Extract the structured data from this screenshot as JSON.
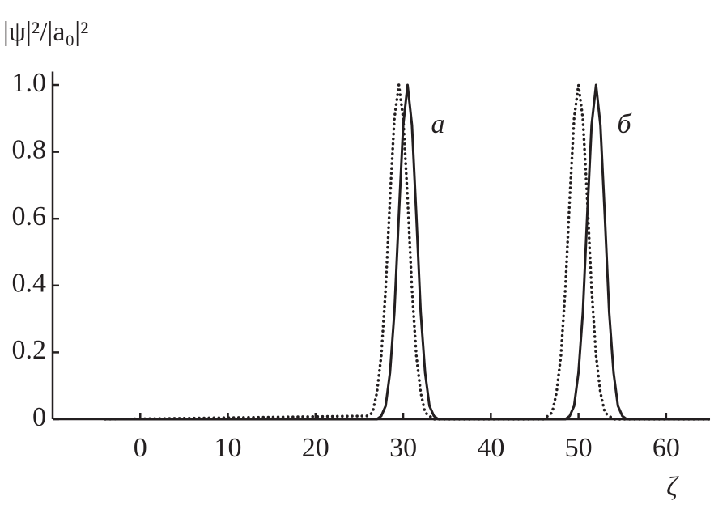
{
  "chart_data": {
    "type": "line",
    "y_label": "|ψ|²/|a₀|²",
    "x_label": "ζ",
    "annotations": [
      "a",
      "б"
    ],
    "x": [
      -4,
      26,
      26.5,
      27,
      27.5,
      28,
      28.5,
      29,
      29.5,
      30,
      30.5,
      31,
      31.5,
      32,
      32.5,
      33,
      33.5,
      34,
      34.5,
      35,
      46,
      46.5,
      47,
      47.5,
      48,
      48.5,
      49,
      49.5,
      50,
      50.5,
      51,
      51.5,
      52,
      52.5,
      53,
      53.5,
      54,
      54.5,
      55,
      55.5,
      56,
      56.5,
      57,
      65
    ],
    "series": [
      {
        "color": "#231f20",
        "style": "solid",
        "values": [
          0,
          0,
          0,
          0,
          0.01,
          0.04,
          0.14,
          0.32,
          0.61,
          0.88,
          1,
          0.88,
          0.61,
          0.32,
          0.14,
          0.04,
          0.01,
          0,
          0,
          0,
          0,
          0,
          0,
          0,
          0,
          0,
          0.01,
          0.04,
          0.14,
          0.32,
          0.61,
          0.88,
          1,
          0.88,
          0.61,
          0.32,
          0.14,
          0.04,
          0.01,
          0,
          0,
          0,
          0,
          0
        ]
      },
      {
        "color": "#231f20",
        "style": "dotted",
        "values": [
          0,
          0.01,
          0.02,
          0.08,
          0.19,
          0.39,
          0.66,
          0.9,
          1,
          0.9,
          0.66,
          0.39,
          0.19,
          0.08,
          0.02,
          0.01,
          0,
          0,
          0,
          0,
          0,
          0.01,
          0.02,
          0.08,
          0.19,
          0.39,
          0.66,
          0.9,
          1,
          0.9,
          0.66,
          0.39,
          0.19,
          0.08,
          0.02,
          0.01,
          0,
          0,
          0,
          0,
          0,
          0,
          0,
          0
        ]
      }
    ],
    "xlim": [
      -10,
      65
    ],
    "ylim": [
      0,
      1.04
    ],
    "xticks": [
      0,
      10,
      20,
      30,
      40,
      50,
      60
    ],
    "yticks": [
      0,
      0.2,
      0.4,
      0.6,
      0.8,
      {
        "value": 1,
        "label": "1.0"
      }
    ]
  }
}
